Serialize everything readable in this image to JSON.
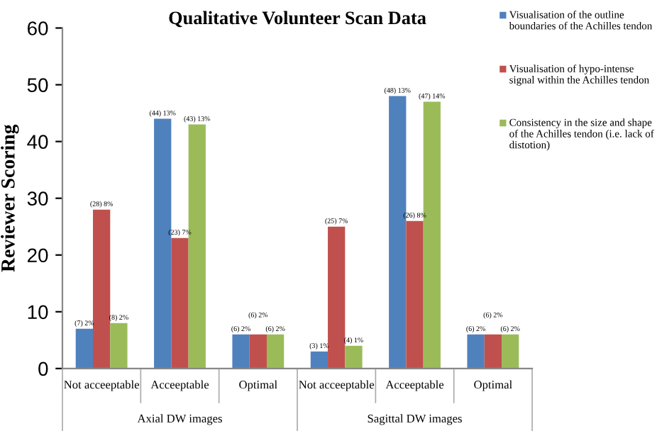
{
  "chart_data": {
    "type": "bar",
    "title": "Qualitative Volunteer Scan Data",
    "ylabel": "Reviewer Scoring",
    "categories": [
      "Not acceeptable",
      "Acceeptable",
      "Optimal",
      "Not acceeptable",
      "Acceeptable",
      "Optimal"
    ],
    "annotations": [
      "Axial DW images",
      "Sagittal DW images"
    ],
    "series": [
      {
        "name": "Visualisation of the outline boundaries of the Achilles tendon",
        "color": "#4f81bd",
        "values": [
          7,
          44,
          6,
          3,
          48,
          6
        ],
        "value_labels": [
          "(7) 2%",
          "(44) 13%",
          "(6) 2%",
          "(3) 1%",
          "(48) 13%",
          "(6) 2%"
        ]
      },
      {
        "name": "Visualisation of hypo-intense signal within the Achilles tendon",
        "color": "#c0504d",
        "values": [
          28,
          23,
          6,
          25,
          26,
          6
        ],
        "value_labels": [
          "(28) 8%",
          "(23) 7%",
          "(6) 2%",
          "(25) 7%",
          "(26) 8%",
          "(6) 2%"
        ]
      },
      {
        "name": "Consistency in the size and shape of the Achilles tendon (i.e. lack of distotion)",
        "color": "#9bbb59",
        "values": [
          8,
          43,
          6,
          4,
          47,
          6
        ],
        "value_labels": [
          "(8) 2%",
          "(43) 13%",
          "(6) 2%",
          "(4) 1%",
          "(47) 14%",
          "(6) 2%"
        ]
      }
    ],
    "ylim": [
      0,
      60
    ],
    "yticks": [
      0,
      10,
      20,
      30,
      40,
      50,
      60
    ],
    "grid": false,
    "legend": "top right"
  }
}
